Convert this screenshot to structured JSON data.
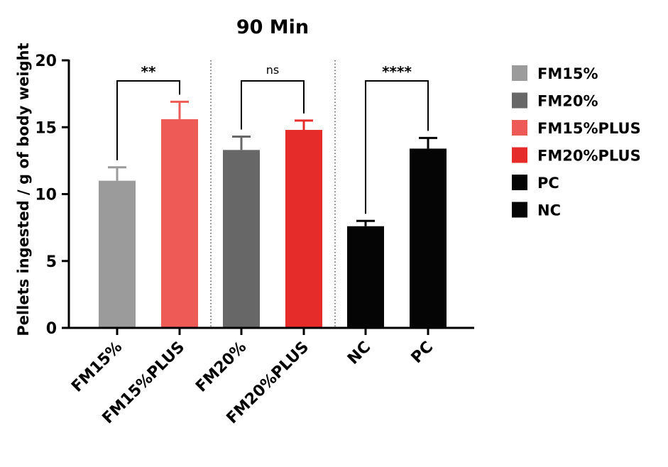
{
  "chart_data": {
    "type": "bar",
    "title": "90 Min",
    "ylabel": "Pellets ingested / g of body weight",
    "xlabel": "",
    "ylim": [
      0,
      20
    ],
    "yticks": [
      "0",
      "5",
      "10",
      "15",
      "20"
    ],
    "categories": [
      "FM15%",
      "FM15%PLUS",
      "FM20%",
      "FM20%PLUS",
      "NC",
      "PC"
    ],
    "values": [
      11.0,
      15.6,
      13.3,
      14.8,
      7.6,
      13.4
    ],
    "errors": [
      1.0,
      1.3,
      1.0,
      0.7,
      0.4,
      0.8
    ],
    "colors": [
      "#9b9b9b",
      "#ee5a55",
      "#676767",
      "#e52c2a",
      "#050505",
      "#050505"
    ],
    "comparisons": [
      {
        "from": "FM15%",
        "to": "FM15%PLUS",
        "label": "**"
      },
      {
        "from": "FM20%",
        "to": "FM20%PLUS",
        "label": "ns"
      },
      {
        "from": "NC",
        "to": "PC",
        "label": "****"
      }
    ],
    "legend": [
      {
        "label": "FM15%",
        "color": "#9b9b9b"
      },
      {
        "label": "FM20%",
        "color": "#676767"
      },
      {
        "label": "FM15%PLUS",
        "color": "#ee5a55"
      },
      {
        "label": "FM20%PLUS",
        "color": "#e52c2a"
      },
      {
        "label": "PC",
        "color": "#050505"
      },
      {
        "label": "NC",
        "color": "#050505"
      }
    ],
    "legend_position": "right",
    "grid": false
  }
}
